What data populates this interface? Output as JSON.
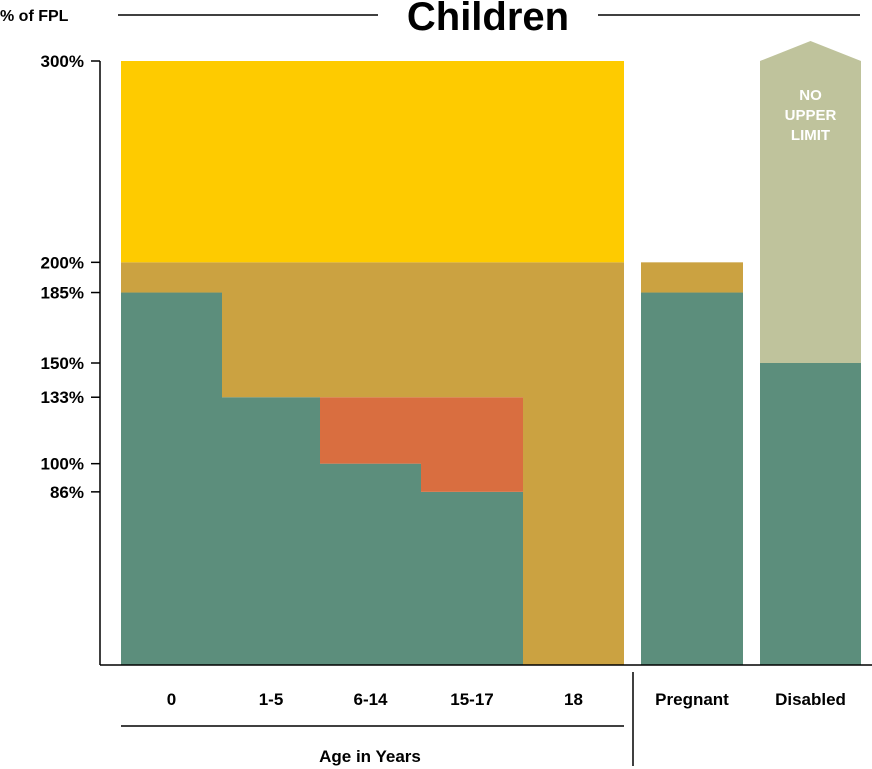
{
  "chart_data": {
    "type": "bar",
    "title": "Children",
    "ylabel": "% of FPL",
    "xlabel": "Age in Years",
    "ylim": [
      0,
      300
    ],
    "y_ticks": [
      {
        "value": 300,
        "label": "300%"
      },
      {
        "value": 200,
        "label": "200%"
      },
      {
        "value": 185,
        "label": "185%"
      },
      {
        "value": 150,
        "label": "150%"
      },
      {
        "value": 133,
        "label": "133%"
      },
      {
        "value": 100,
        "label": "100%"
      },
      {
        "value": 86,
        "label": "86%"
      }
    ],
    "categories": [
      "0",
      "1-5",
      "6-14",
      "15-17",
      "18",
      "Pregnant",
      "Disabled"
    ],
    "colors": {
      "green": "#5c8e7c",
      "orange": "#d96e40",
      "tan": "#cba241",
      "gold": "#fecb00",
      "sage": "#bfc39c"
    },
    "segments": [
      {
        "category": "0",
        "from": 0,
        "to": 185,
        "color": "green"
      },
      {
        "category": "0",
        "from": 185,
        "to": 200,
        "color": "tan"
      },
      {
        "category": "0",
        "from": 200,
        "to": 300,
        "color": "gold"
      },
      {
        "category": "1-5",
        "from": 0,
        "to": 133,
        "color": "green"
      },
      {
        "category": "1-5",
        "from": 133,
        "to": 200,
        "color": "tan"
      },
      {
        "category": "1-5",
        "from": 200,
        "to": 300,
        "color": "gold"
      },
      {
        "category": "6-14",
        "from": 0,
        "to": 100,
        "color": "green"
      },
      {
        "category": "6-14",
        "from": 100,
        "to": 133,
        "color": "orange"
      },
      {
        "category": "6-14",
        "from": 133,
        "to": 200,
        "color": "tan"
      },
      {
        "category": "6-14",
        "from": 200,
        "to": 300,
        "color": "gold"
      },
      {
        "category": "15-17",
        "from": 0,
        "to": 86,
        "color": "green"
      },
      {
        "category": "15-17",
        "from": 86,
        "to": 133,
        "color": "orange"
      },
      {
        "category": "15-17",
        "from": 133,
        "to": 200,
        "color": "tan"
      },
      {
        "category": "15-17",
        "from": 200,
        "to": 300,
        "color": "gold"
      },
      {
        "category": "18",
        "from": 0,
        "to": 200,
        "color": "tan"
      },
      {
        "category": "18",
        "from": 200,
        "to": 300,
        "color": "gold"
      },
      {
        "category": "Pregnant",
        "from": 0,
        "to": 185,
        "color": "green"
      },
      {
        "category": "Pregnant",
        "from": 185,
        "to": 200,
        "color": "tan"
      },
      {
        "category": "Disabled",
        "from": 0,
        "to": 150,
        "color": "green"
      },
      {
        "category": "Disabled",
        "from": 150,
        "to": null,
        "color": "sage"
      }
    ],
    "annotation": {
      "category": "Disabled",
      "lines": [
        "NO",
        "UPPER",
        "LIMIT"
      ]
    }
  }
}
